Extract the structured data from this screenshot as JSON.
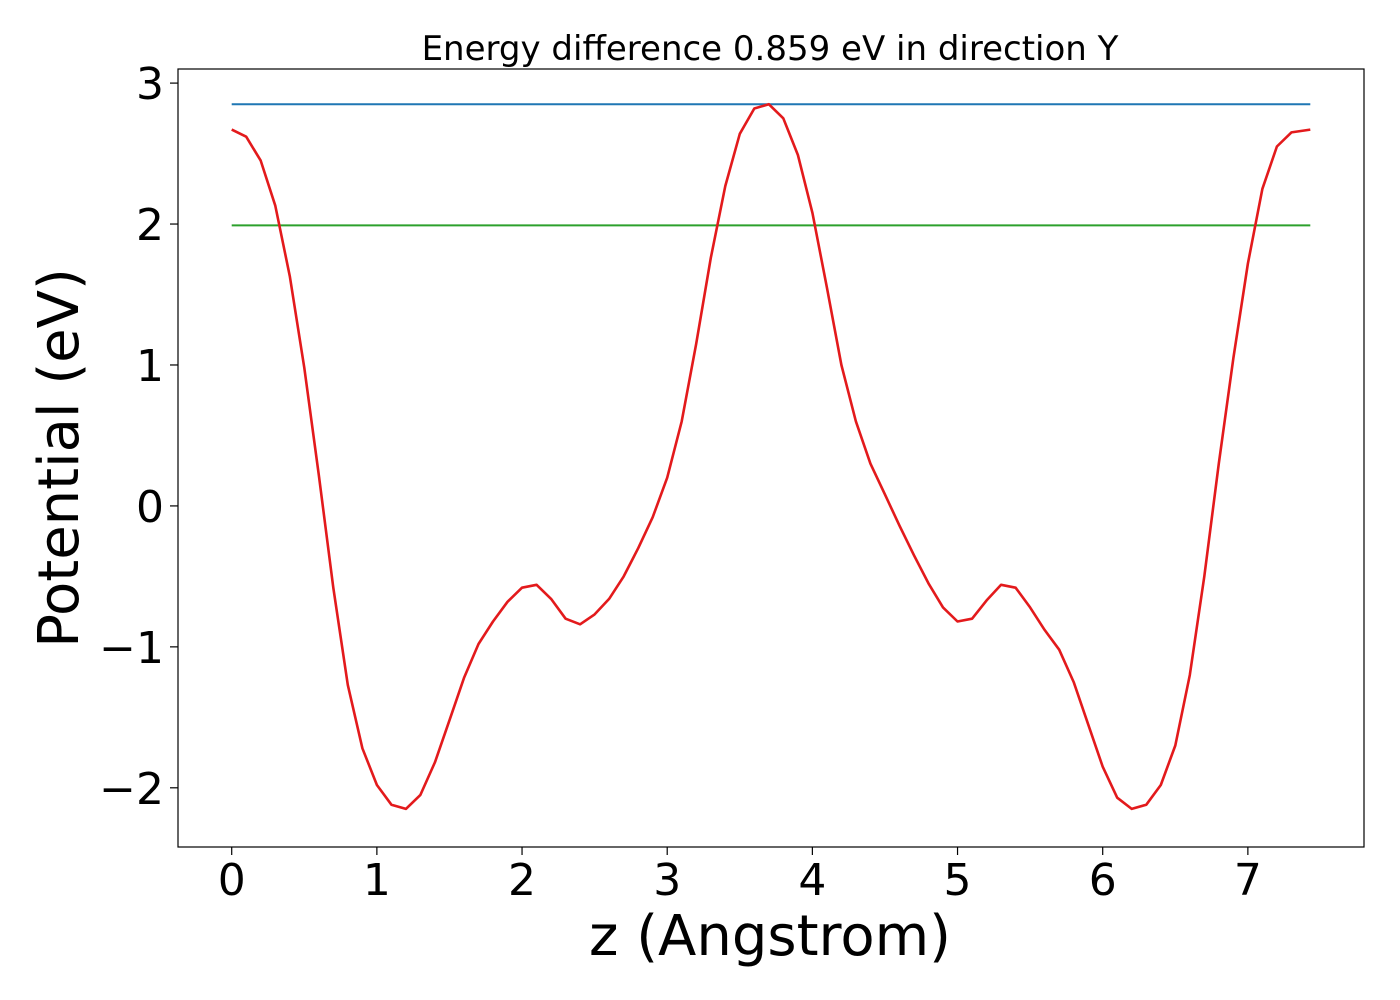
{
  "chart_data": {
    "type": "line",
    "title": "Energy difference 0.859 eV in direction Y",
    "xlabel": "z (Angstrom)",
    "ylabel": "Potential (eV)",
    "xlim": [
      -0.37,
      7.8
    ],
    "ylim": [
      -2.42,
      3.1
    ],
    "grid": false,
    "legend": "none",
    "x_ticks": [
      0,
      1,
      2,
      3,
      4,
      5,
      6,
      7
    ],
    "x_tick_labels": [
      "0",
      "1",
      "2",
      "3",
      "4",
      "5",
      "6",
      "7"
    ],
    "y_ticks": [
      -2,
      -1,
      0,
      1,
      2,
      3
    ],
    "y_tick_labels": [
      "−2",
      "−1",
      "0",
      "1",
      "2",
      "3"
    ],
    "series": [
      {
        "color": "#1f77b4",
        "style": "horizontal",
        "x": [
          0,
          7.43
        ],
        "y": [
          2.85,
          2.85
        ]
      },
      {
        "color": "#2ca02c",
        "style": "horizontal",
        "x": [
          0,
          7.43
        ],
        "y": [
          1.99,
          1.99
        ]
      },
      {
        "color": "#e31a1c",
        "style": "curve",
        "x": [
          0.0,
          0.1,
          0.2,
          0.3,
          0.4,
          0.5,
          0.6,
          0.7,
          0.8,
          0.9,
          1.0,
          1.1,
          1.2,
          1.3,
          1.4,
          1.5,
          1.6,
          1.7,
          1.8,
          1.9,
          2.0,
          2.1,
          2.2,
          2.3,
          2.4,
          2.5,
          2.6,
          2.7,
          2.8,
          2.9,
          3.0,
          3.1,
          3.2,
          3.3,
          3.4,
          3.5,
          3.6,
          3.7,
          3.8,
          3.9,
          4.0,
          4.1,
          4.2,
          4.3,
          4.4,
          4.5,
          4.6,
          4.7,
          4.8,
          4.9,
          5.0,
          5.1,
          5.2,
          5.3,
          5.4,
          5.5,
          5.6,
          5.7,
          5.8,
          5.9,
          6.0,
          6.1,
          6.2,
          6.3,
          6.4,
          6.5,
          6.6,
          6.7,
          6.8,
          6.9,
          7.0,
          7.1,
          7.2,
          7.3,
          7.43
        ],
        "y": [
          2.67,
          2.62,
          2.45,
          2.13,
          1.63,
          0.98,
          0.22,
          -0.58,
          -1.27,
          -1.72,
          -1.98,
          -2.12,
          -2.15,
          -2.05,
          -1.82,
          -1.52,
          -1.22,
          -0.98,
          -0.82,
          -0.68,
          -0.58,
          -0.56,
          -0.66,
          -0.8,
          -0.84,
          -0.77,
          -0.66,
          -0.5,
          -0.3,
          -0.08,
          0.2,
          0.6,
          1.15,
          1.76,
          2.27,
          2.64,
          2.82,
          2.85,
          2.75,
          2.49,
          2.08,
          1.55,
          1.0,
          0.6,
          0.3,
          0.08,
          -0.14,
          -0.35,
          -0.55,
          -0.72,
          -0.82,
          -0.8,
          -0.67,
          -0.56,
          -0.58,
          -0.72,
          -0.88,
          -1.02,
          -1.25,
          -1.55,
          -1.85,
          -2.07,
          -2.15,
          -2.12,
          -1.98,
          -1.7,
          -1.2,
          -0.5,
          0.3,
          1.05,
          1.72,
          2.25,
          2.55,
          2.65,
          2.67
        ]
      }
    ]
  }
}
